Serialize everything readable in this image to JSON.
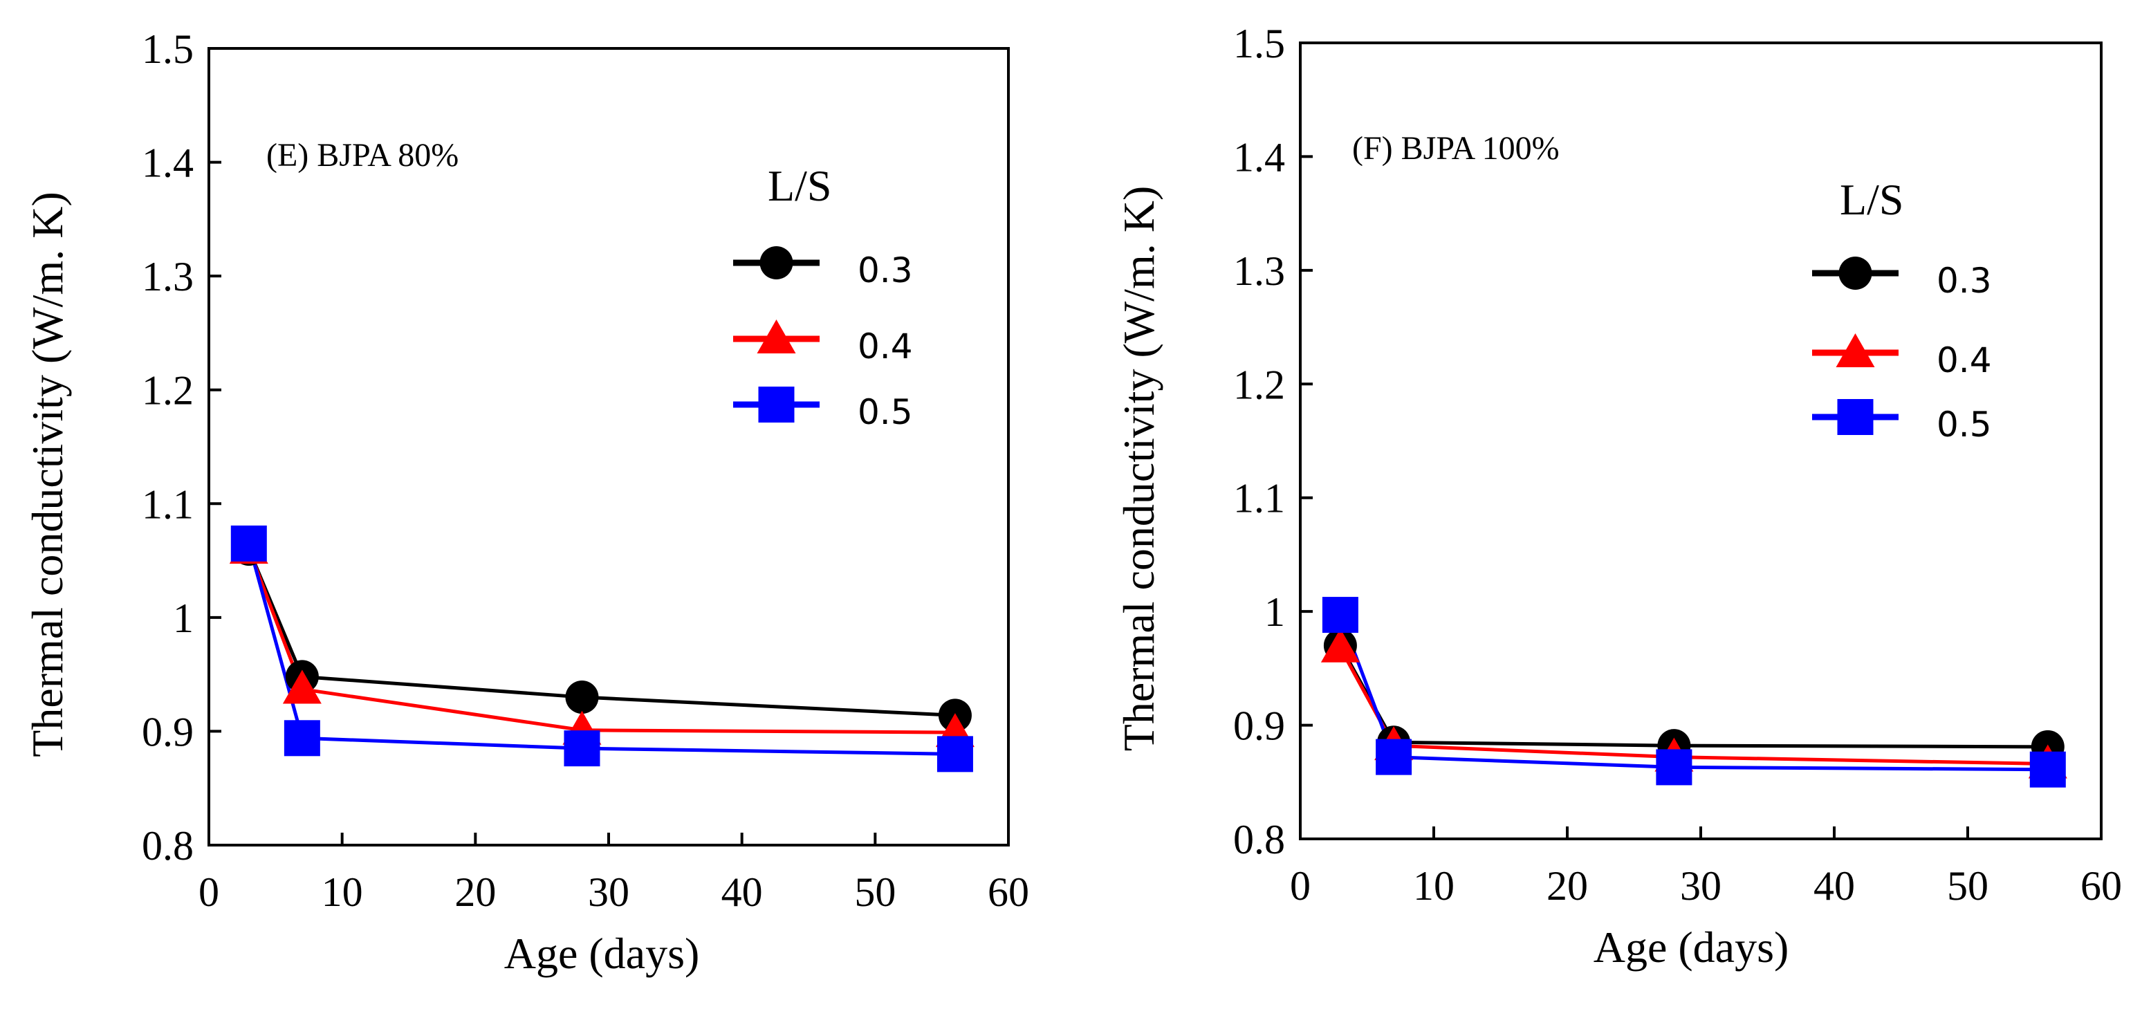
{
  "chart_data": [
    {
      "type": "line",
      "title": "(E) BJPA 80%",
      "xlabel": "Age (days)",
      "ylabel": "Thermal conductivity (W/m.  K)",
      "xlim": [
        0,
        60
      ],
      "ylim": [
        0.8,
        1.5
      ],
      "xticks": [
        "0",
        "10",
        "20",
        "30",
        "40",
        "50",
        "60"
      ],
      "yticks": [
        "0.8",
        "0.9",
        "1",
        "1.1",
        "1.2",
        "1.3",
        "1.4",
        "1.5"
      ],
      "legend_title": "L/S",
      "legend_position": "upper-right",
      "x": [
        3,
        7,
        28,
        56
      ],
      "series": [
        {
          "name": "0.3",
          "color": "#000000",
          "marker": "circle",
          "values": [
            1.06,
            0.948,
            0.93,
            0.914
          ]
        },
        {
          "name": "0.4",
          "color": "#ff0000",
          "marker": "triangle",
          "values": [
            1.06,
            0.937,
            0.901,
            0.899
          ]
        },
        {
          "name": "0.5",
          "color": "#0000ff",
          "marker": "square",
          "values": [
            1.065,
            0.894,
            0.885,
            0.88
          ]
        }
      ]
    },
    {
      "type": "line",
      "title": "(F) BJPA 100%",
      "xlabel": "Age (days)",
      "ylabel": "Thermal conductivity (W/m.  K)",
      "xlim": [
        0,
        60
      ],
      "ylim": [
        0.8,
        1.5
      ],
      "xticks": [
        "0",
        "10",
        "20",
        "30",
        "40",
        "50",
        "60"
      ],
      "yticks": [
        "0.8",
        "0.9",
        "1",
        "1.1",
        "1.2",
        "1.3",
        "1.4",
        "1.5"
      ],
      "legend_title": "L/S",
      "legend_position": "upper-right",
      "x": [
        3,
        7,
        28,
        56
      ],
      "series": [
        {
          "name": "0.3",
          "color": "#000000",
          "marker": "circle",
          "values": [
            0.97,
            0.885,
            0.882,
            0.881
          ]
        },
        {
          "name": "0.4",
          "color": "#ff0000",
          "marker": "triangle",
          "values": [
            0.968,
            0.882,
            0.872,
            0.866
          ]
        },
        {
          "name": "0.5",
          "color": "#0000ff",
          "marker": "square",
          "values": [
            0.997,
            0.872,
            0.863,
            0.861
          ]
        }
      ]
    }
  ]
}
